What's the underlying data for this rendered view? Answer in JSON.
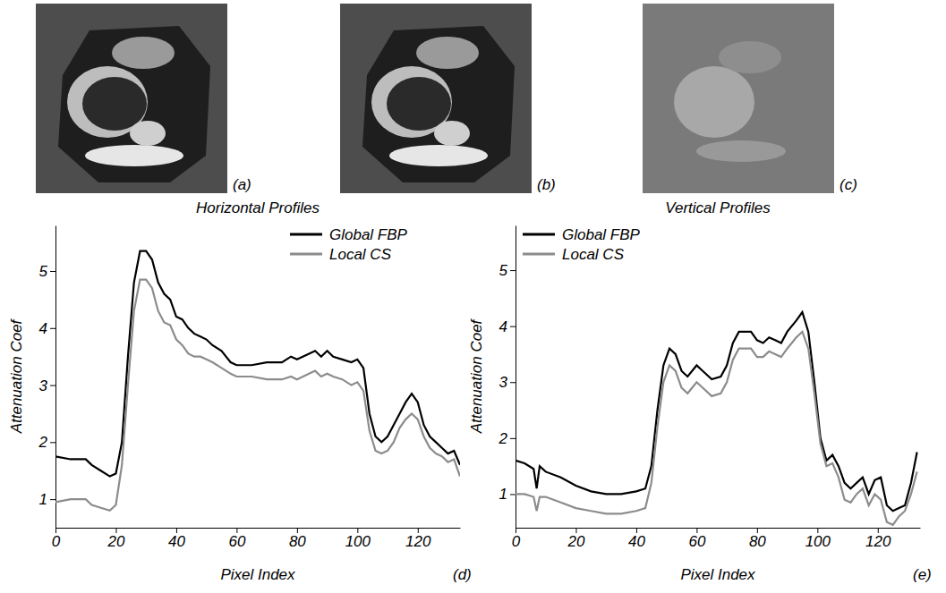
{
  "images": [
    {
      "label": "(a)"
    },
    {
      "label": "(b)"
    },
    {
      "label": "(c)"
    }
  ],
  "chart_data": [
    {
      "type": "line",
      "title": "Horizontal Profiles",
      "annotation": "(d)",
      "x_label": "Pixel Index",
      "y_label": "Attenuation Coef",
      "x": [
        0,
        5,
        10,
        12,
        15,
        18,
        20,
        22,
        24,
        26,
        28,
        30,
        32,
        34,
        36,
        38,
        40,
        42,
        44,
        46,
        48,
        50,
        52,
        55,
        58,
        60,
        65,
        70,
        75,
        78,
        80,
        84,
        86,
        88,
        90,
        92,
        95,
        98,
        100,
        102,
        104,
        106,
        108,
        110,
        112,
        114,
        116,
        118,
        120,
        122,
        124,
        126,
        128,
        130,
        132,
        134
      ],
      "series": [
        {
          "name": "Global FBP",
          "color": "#000000",
          "values": [
            1.75,
            1.7,
            1.7,
            1.6,
            1.5,
            1.4,
            1.45,
            2.0,
            3.5,
            4.8,
            5.35,
            5.35,
            5.2,
            4.8,
            4.6,
            4.5,
            4.2,
            4.15,
            4.0,
            3.9,
            3.85,
            3.8,
            3.7,
            3.6,
            3.4,
            3.35,
            3.35,
            3.4,
            3.4,
            3.5,
            3.45,
            3.55,
            3.6,
            3.5,
            3.6,
            3.5,
            3.45,
            3.4,
            3.45,
            3.3,
            2.5,
            2.1,
            2.0,
            2.1,
            2.3,
            2.5,
            2.7,
            2.85,
            2.7,
            2.3,
            2.1,
            2.0,
            1.9,
            1.8,
            1.85,
            1.6
          ]
        },
        {
          "name": "Local CS",
          "color": "#8c8c8c",
          "values": [
            0.95,
            1.0,
            1.0,
            0.9,
            0.85,
            0.8,
            0.9,
            1.6,
            3.0,
            4.3,
            4.85,
            4.85,
            4.7,
            4.3,
            4.1,
            4.05,
            3.8,
            3.7,
            3.55,
            3.5,
            3.5,
            3.45,
            3.4,
            3.3,
            3.2,
            3.15,
            3.15,
            3.1,
            3.1,
            3.15,
            3.1,
            3.2,
            3.25,
            3.15,
            3.2,
            3.15,
            3.1,
            3.0,
            3.05,
            2.9,
            2.2,
            1.85,
            1.8,
            1.85,
            2.0,
            2.25,
            2.4,
            2.5,
            2.4,
            2.1,
            1.9,
            1.8,
            1.75,
            1.65,
            1.7,
            1.4
          ]
        }
      ],
      "xlim": [
        0,
        134
      ],
      "xticks": [
        0,
        20,
        40,
        60,
        80,
        100,
        120
      ],
      "ylim": [
        0.5,
        5.8
      ],
      "yticks": [
        1,
        2,
        3,
        4,
        5
      ],
      "grid": false,
      "legend": "upper right"
    },
    {
      "type": "line",
      "title": "Vertical Profiles",
      "annotation": "(e)",
      "x_label": "Pixel Index",
      "y_label": "Attenuation Coef",
      "x": [
        0,
        3,
        6,
        7,
        8,
        10,
        15,
        20,
        25,
        30,
        35,
        40,
        43,
        45,
        47,
        49,
        51,
        53,
        55,
        57,
        60,
        62,
        65,
        68,
        70,
        72,
        74,
        78,
        80,
        82,
        84,
        86,
        88,
        90,
        93,
        95,
        97,
        99,
        101,
        103,
        105,
        107,
        109,
        111,
        113,
        115,
        117,
        119,
        121,
        123,
        125,
        127,
        129,
        131,
        133
      ],
      "series": [
        {
          "name": "Global FBP",
          "color": "#000000",
          "values": [
            1.6,
            1.55,
            1.45,
            1.1,
            1.5,
            1.4,
            1.3,
            1.15,
            1.05,
            1.0,
            1.0,
            1.05,
            1.1,
            1.5,
            2.5,
            3.3,
            3.6,
            3.5,
            3.2,
            3.1,
            3.3,
            3.2,
            3.05,
            3.1,
            3.3,
            3.7,
            3.9,
            3.9,
            3.75,
            3.7,
            3.8,
            3.75,
            3.7,
            3.9,
            4.1,
            4.25,
            3.9,
            3.0,
            2.0,
            1.6,
            1.7,
            1.5,
            1.2,
            1.1,
            1.2,
            1.3,
            1.0,
            1.25,
            1.3,
            0.8,
            0.7,
            0.75,
            0.8,
            1.2,
            1.75
          ]
        },
        {
          "name": "Local CS",
          "color": "#8c8c8c",
          "values": [
            1.0,
            1.0,
            0.95,
            0.7,
            0.95,
            0.95,
            0.85,
            0.75,
            0.7,
            0.65,
            0.65,
            0.7,
            0.75,
            1.2,
            2.2,
            3.0,
            3.3,
            3.2,
            2.9,
            2.8,
            3.0,
            2.9,
            2.75,
            2.8,
            3.0,
            3.4,
            3.6,
            3.6,
            3.45,
            3.45,
            3.55,
            3.5,
            3.45,
            3.6,
            3.8,
            3.9,
            3.6,
            2.8,
            1.9,
            1.5,
            1.55,
            1.3,
            0.9,
            0.85,
            1.0,
            1.1,
            0.8,
            1.0,
            0.9,
            0.5,
            0.45,
            0.6,
            0.7,
            1.0,
            1.4
          ]
        }
      ],
      "xlim": [
        0,
        134
      ],
      "xticks": [
        0,
        20,
        40,
        60,
        80,
        100,
        120
      ],
      "ylim": [
        0.4,
        5.8
      ],
      "yticks": [
        1,
        2,
        3,
        4,
        5
      ],
      "grid": false,
      "legend": "upper left"
    }
  ]
}
